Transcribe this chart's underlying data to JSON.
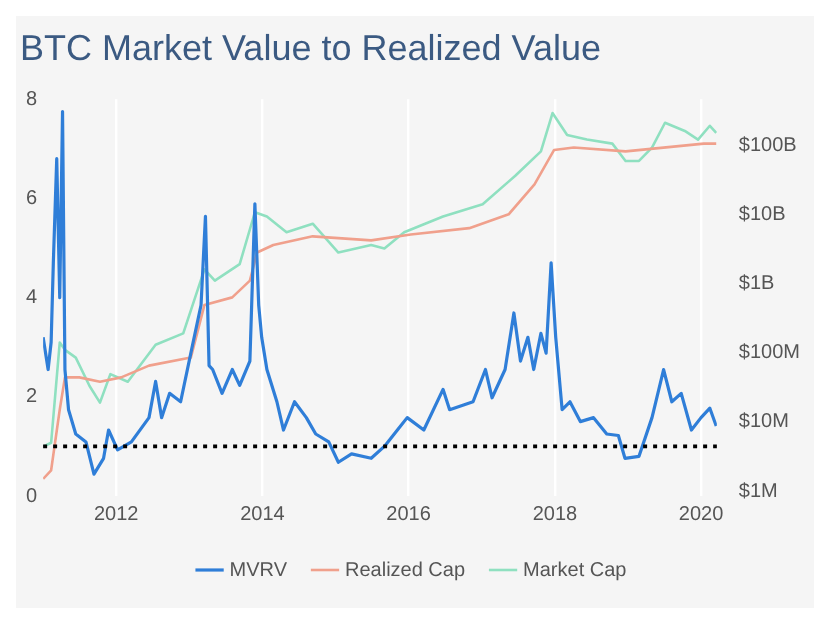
{
  "chart_data": {
    "type": "line",
    "title": "BTC Market Value to Realized Value",
    "xlim": [
      "2011-01-01",
      "2020-03-20"
    ],
    "xticks": [
      "2012",
      "2014",
      "2016",
      "2018",
      "2020"
    ],
    "ylim": [
      0,
      8
    ],
    "yticks": [
      0,
      2,
      4,
      6,
      8
    ],
    "y2lim": [
      850000,
      460000000000
    ],
    "y2ticks": [
      {
        "value": 1000000,
        "label": "$1M"
      },
      {
        "value": 10000000,
        "label": "$10M"
      },
      {
        "value": 100000000,
        "label": "$100M"
      },
      {
        "value": 1000000000,
        "label": "$1B"
      },
      {
        "value": 10000000000,
        "label": "$10B"
      },
      {
        "value": 100000000000,
        "label": "$100B"
      }
    ],
    "log": "y2",
    "grid": "x",
    "legend": "bottom",
    "marker": "none",
    "ref_lines": [
      {
        "axis": "y",
        "value": 1,
        "color": "#000000",
        "line_style": "dotted"
      }
    ],
    "series": [
      {
        "name": "MVRV",
        "color": "#2f7ed8",
        "x": [
          "2011-01-01",
          "2011-01-26",
          "2011-02-10",
          "2011-02-21",
          "2011-03-10",
          "2011-03-25",
          "2011-04-08",
          "2011-04-20",
          "2011-05-08",
          "2011-06-13",
          "2011-08-03",
          "2011-09-12",
          "2011-10-30",
          "2011-11-24",
          "2012-01-08",
          "2012-03-17",
          "2012-06-13",
          "2012-07-16",
          "2012-08-15",
          "2012-09-24",
          "2012-11-18",
          "2013-01-08",
          "2013-02-28",
          "2013-03-22",
          "2013-04-09",
          "2013-04-27",
          "2013-06-13",
          "2013-08-03",
          "2013-09-09",
          "2013-10-30",
          "2013-11-24",
          "2013-12-13",
          "2013-12-28",
          "2014-01-23",
          "2014-03-14",
          "2014-04-16",
          "2014-06-10",
          "2014-08-08",
          "2014-09-24",
          "2014-11-28",
          "2015-01-15",
          "2015-03-22",
          "2015-06-28",
          "2015-09-02",
          "2015-11-06",
          "2015-12-25",
          "2016-03-17",
          "2016-06-21",
          "2016-07-24",
          "2016-11-18",
          "2017-01-19",
          "2017-02-21",
          "2017-04-27",
          "2017-06-10",
          "2017-07-13",
          "2017-08-19",
          "2017-09-17",
          "2017-10-23",
          "2017-11-18",
          "2017-12-13",
          "2018-01-05",
          "2018-02-06",
          "2018-03-17",
          "2018-05-08",
          "2018-07-13",
          "2018-09-17",
          "2018-11-14",
          "2018-12-17",
          "2019-02-25",
          "2019-05-01",
          "2019-06-28",
          "2019-08-08",
          "2019-09-24",
          "2019-11-14",
          "2020-01-01",
          "2020-02-14",
          "2020-03-17"
        ],
        "values": [
          3.2,
          2.55,
          3.1,
          4.7,
          6.8,
          4.0,
          7.75,
          2.55,
          1.74,
          1.25,
          1.09,
          0.44,
          0.76,
          1.33,
          0.93,
          1.09,
          1.58,
          2.31,
          1.58,
          2.07,
          1.9,
          2.88,
          3.85,
          5.64,
          2.63,
          2.55,
          2.07,
          2.55,
          2.23,
          2.72,
          5.89,
          3.85,
          3.2,
          2.55,
          1.9,
          1.33,
          1.9,
          1.58,
          1.25,
          1.09,
          0.68,
          0.85,
          0.76,
          1.0,
          1.33,
          1.58,
          1.33,
          2.15,
          1.74,
          1.9,
          2.55,
          1.98,
          2.55,
          3.69,
          2.72,
          3.2,
          2.55,
          3.28,
          2.88,
          4.7,
          3.2,
          1.74,
          1.9,
          1.5,
          1.58,
          1.25,
          1.22,
          0.76,
          0.8,
          1.58,
          2.55,
          1.9,
          2.07,
          1.33,
          1.58,
          1.77,
          1.41
        ]
      },
      {
        "name": "Realized Cap",
        "color": "#f0a08c",
        "axis": "y2",
        "x": [
          "2011-01-01",
          "2011-02-10",
          "2011-03-25",
          "2011-04-20",
          "2011-07-01",
          "2011-10-12",
          "2012-01-26",
          "2012-06-13",
          "2013-01-08",
          "2013-03-17",
          "2013-08-03",
          "2013-10-30",
          "2013-12-05",
          "2014-02-24",
          "2014-09-09",
          "2015-06-28",
          "2016-01-12",
          "2016-10-30",
          "2017-05-15",
          "2017-09-21",
          "2017-12-28",
          "2018-04-05",
          "2018-12-20",
          "2020-01-15",
          "2020-03-17"
        ],
        "values": [
          1500000,
          2000000,
          15000000,
          44000000,
          44000000,
          38000000,
          44000000,
          65000000,
          85000000,
          490000000,
          630000000,
          1100000000,
          2800000000,
          3600000000,
          4800000000,
          4200000000,
          5100000000,
          6300000000,
          10000000000,
          27000000000,
          85000000000,
          92000000000,
          81000000000,
          105000000000,
          105000000000
        ]
      },
      {
        "name": "Market Cap",
        "color": "#8fe0c0",
        "axis": "y2",
        "x": [
          "2011-01-01",
          "2011-02-10",
          "2011-03-25",
          "2011-04-20",
          "2011-06-13",
          "2011-08-21",
          "2011-10-12",
          "2011-12-03",
          "2012-02-28",
          "2012-07-16",
          "2012-12-01",
          "2013-03-17",
          "2013-05-08",
          "2013-09-09",
          "2013-11-24",
          "2014-01-23",
          "2014-05-01",
          "2014-09-09",
          "2015-01-15",
          "2015-06-28",
          "2015-09-02",
          "2015-12-10",
          "2016-06-21",
          "2017-01-05",
          "2017-06-17",
          "2017-10-23",
          "2017-12-20",
          "2018-03-03",
          "2018-06-10",
          "2018-10-15",
          "2018-12-20",
          "2019-02-25",
          "2019-05-01",
          "2019-07-05",
          "2019-10-12",
          "2019-12-17",
          "2020-02-14",
          "2020-03-17"
        ],
        "values": [
          4400000,
          5000000,
          140000000,
          110000000,
          85000000,
          33000000,
          19000000,
          49000000,
          38000000,
          130000000,
          190000000,
          1600000000,
          1100000000,
          1900000000,
          10700000000,
          9300000000,
          5500000000,
          7300000000,
          2800000000,
          3600000000,
          3200000000,
          5500000000,
          9300000000,
          14000000000,
          36000000000,
          81000000000,
          290000000000,
          140000000000,
          120000000000,
          105000000000,
          59000000000,
          59000000000,
          92000000000,
          210000000000,
          160000000000,
          120000000000,
          190000000000,
          150000000000
        ]
      }
    ]
  }
}
